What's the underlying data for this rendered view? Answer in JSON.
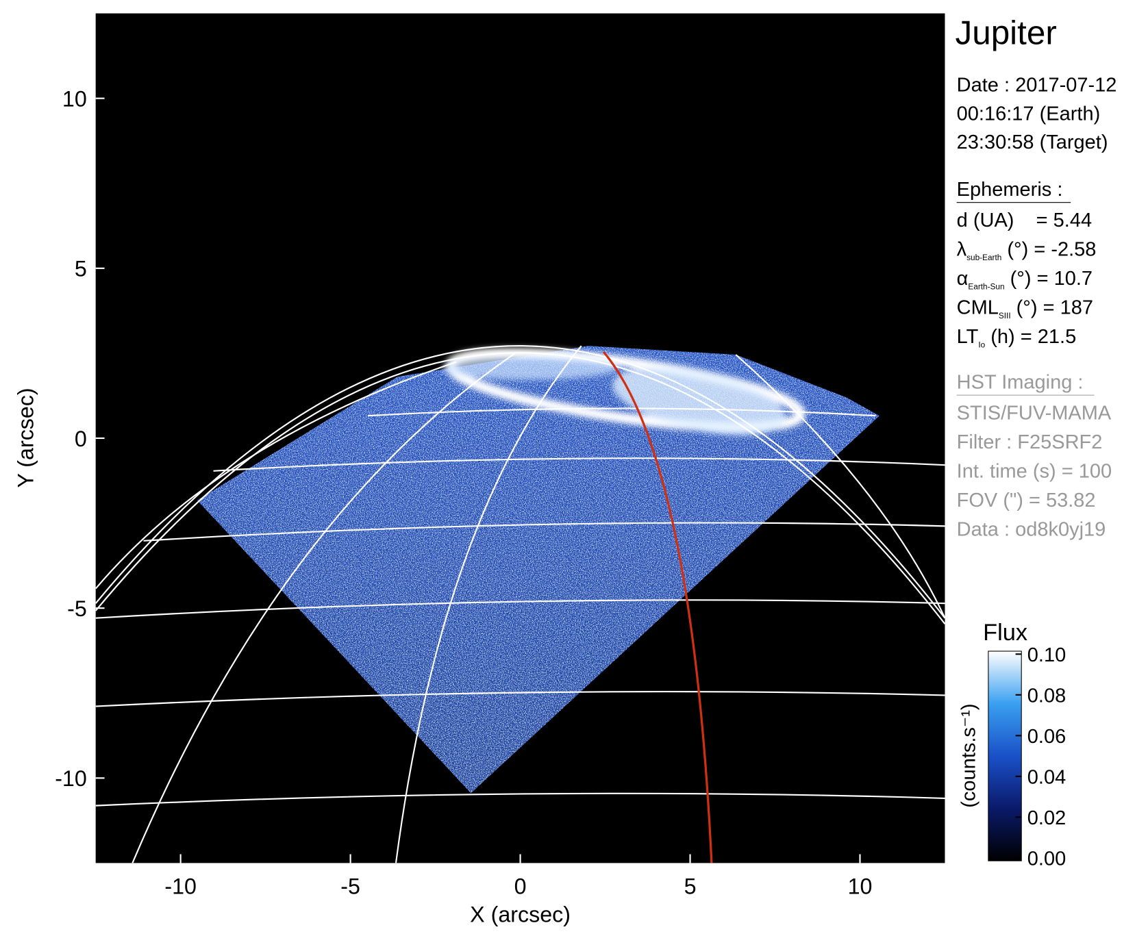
{
  "chart_data": {
    "type": "image",
    "title": "Jupiter",
    "xlabel": "X (arcsec)",
    "ylabel": "Y (arcsec)",
    "xlim": [
      -12.5,
      12.5
    ],
    "ylim": [
      -12.5,
      12.5
    ],
    "xticks": [
      -10,
      -5,
      0,
      5,
      10
    ],
    "yticks": [
      -10,
      -5,
      0,
      5,
      10
    ],
    "colorbar": {
      "title": "Flux",
      "label": "(counts.s⁻¹)",
      "lim": [
        0,
        0.1
      ],
      "ticks": [
        {
          "value": 0,
          "label": "0.00"
        },
        {
          "value": 0.02,
          "label": "0.02"
        },
        {
          "value": 0.04,
          "label": "0.04"
        },
        {
          "value": 0.06,
          "label": "0.06"
        },
        {
          "value": 0.08,
          "label": "0.08"
        },
        {
          "value": 0.1,
          "label": "0.10"
        }
      ]
    }
  },
  "info": {
    "date": [
      "Date : 2017-07-12",
      "00:16:17 (Earth)",
      "23:30:58 (Target)"
    ],
    "ephemeris_title": "Ephemeris :",
    "ephemeris": [
      {
        "text": "d (UA)    = 5.44"
      },
      {
        "symbol": "λ",
        "sub": "sub-Earth",
        "text": " (°) = -2.58"
      },
      {
        "symbol": "α",
        "sub": "Earth-Sun",
        "text": " (°) = 10.7"
      },
      {
        "symbol": "CML",
        "sub": "SIII",
        "text": " (°) = 187"
      },
      {
        "symbol": "LT",
        "sub": "Io",
        "text": " (h) = 21.5"
      }
    ],
    "imaging_title": "HST Imaging :",
    "imaging": [
      "STIS/FUV-MAMA",
      "Filter : F25SRF2",
      "Int. time (s) = 100",
      "FOV (\") = 53.82",
      "Data : od8k0yj19"
    ]
  }
}
